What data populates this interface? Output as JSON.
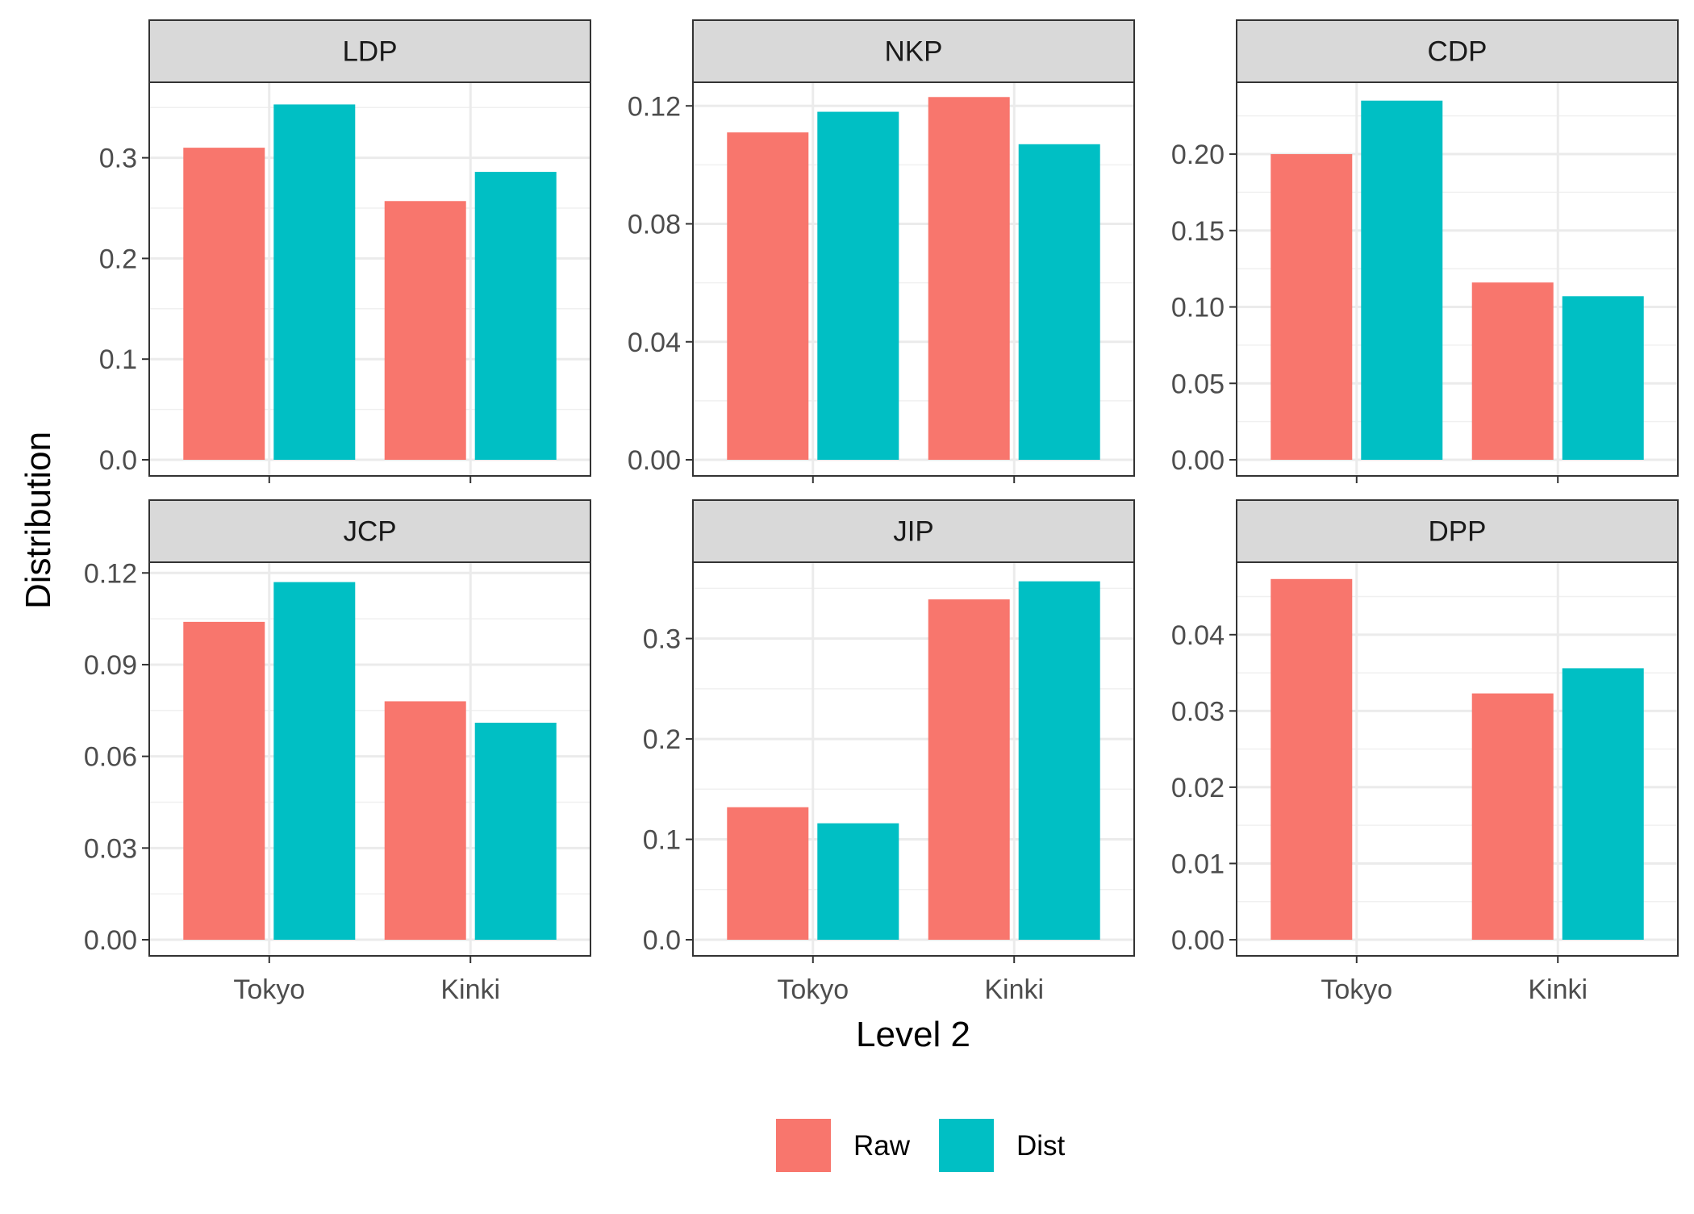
{
  "chart_data": {
    "type": "bar",
    "xlabel": "Level 2",
    "ylabel": "Distribution",
    "categories": [
      "Tokyo",
      "Kinki"
    ],
    "legend": {
      "position": "bottom",
      "title": ""
    },
    "grid": true,
    "series_meta": [
      {
        "name": "Raw",
        "color": "#F8766D"
      },
      {
        "name": "Dist",
        "color": "#00BFC4"
      }
    ],
    "panels": [
      {
        "title": "LDP",
        "ylim": [
          0,
          0.375
        ],
        "ticks": [
          0.0,
          0.1,
          0.2,
          0.3
        ],
        "tick_labels": [
          "0.0",
          "0.1",
          "0.2",
          "0.3"
        ],
        "series": [
          {
            "name": "Raw",
            "values": [
              0.31,
              0.257
            ]
          },
          {
            "name": "Dist",
            "values": [
              0.353,
              0.286
            ]
          }
        ]
      },
      {
        "title": "NKP",
        "ylim": [
          0,
          0.128
        ],
        "ticks": [
          0.0,
          0.04,
          0.08,
          0.12
        ],
        "tick_labels": [
          "0.00",
          "0.04",
          "0.08",
          "0.12"
        ],
        "series": [
          {
            "name": "Raw",
            "values": [
              0.111,
              0.123
            ]
          },
          {
            "name": "Dist",
            "values": [
              0.118,
              0.107
            ]
          }
        ]
      },
      {
        "title": "CDP",
        "ylim": [
          0,
          0.247
        ],
        "ticks": [
          0.0,
          0.05,
          0.1,
          0.15,
          0.2
        ],
        "tick_labels": [
          "0.00",
          "0.05",
          "0.10",
          "0.15",
          "0.20"
        ],
        "series": [
          {
            "name": "Raw",
            "values": [
              0.2,
              0.116
            ]
          },
          {
            "name": "Dist",
            "values": [
              0.235,
              0.107
            ]
          }
        ]
      },
      {
        "title": "JCP",
        "ylim": [
          0,
          0.1235
        ],
        "ticks": [
          0.0,
          0.03,
          0.06,
          0.09,
          0.12
        ],
        "tick_labels": [
          "0.00",
          "0.03",
          "0.06",
          "0.09",
          "0.12"
        ],
        "series": [
          {
            "name": "Raw",
            "values": [
              0.104,
              0.078
            ]
          },
          {
            "name": "Dist",
            "values": [
              0.117,
              0.071
            ]
          }
        ]
      },
      {
        "title": "JIP",
        "ylim": [
          0,
          0.376
        ],
        "ticks": [
          0.0,
          0.1,
          0.2,
          0.3
        ],
        "tick_labels": [
          "0.0",
          "0.1",
          "0.2",
          "0.3"
        ],
        "series": [
          {
            "name": "Raw",
            "values": [
              0.132,
              0.339
            ]
          },
          {
            "name": "Dist",
            "values": [
              0.116,
              0.357
            ]
          }
        ]
      },
      {
        "title": "DPP",
        "ylim": [
          0,
          0.0495
        ],
        "ticks": [
          0.0,
          0.01,
          0.02,
          0.03,
          0.04
        ],
        "tick_labels": [
          "0.00",
          "0.01",
          "0.02",
          "0.03",
          "0.04"
        ],
        "series": [
          {
            "name": "Raw",
            "values": [
              0.0473,
              0.0323
            ]
          },
          {
            "name": "Dist",
            "values": [
              0.0,
              0.0356
            ]
          }
        ]
      }
    ]
  }
}
